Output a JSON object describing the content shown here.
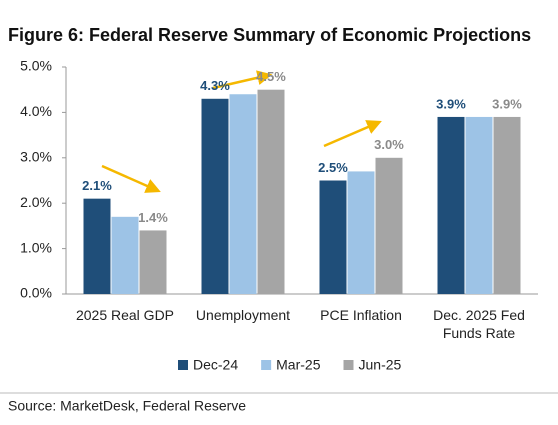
{
  "chart_data": {
    "type": "bar",
    "title": "Figure 6: Federal Reserve Summary of Economic Projections",
    "categories": [
      "2025 Real GDP",
      "Unemployment",
      "PCE Inflation",
      "Dec. 2025 Fed Funds Rate"
    ],
    "series": [
      {
        "name": "Dec-24",
        "color": "#1f4e79",
        "values": [
          2.1,
          4.3,
          2.5,
          3.9
        ],
        "value_labels": [
          "2.1%",
          "4.3%",
          "2.5%",
          "3.9%"
        ]
      },
      {
        "name": "Mar-25",
        "color": "#9dc3e6",
        "values": [
          1.7,
          4.4,
          2.7,
          3.9
        ]
      },
      {
        "name": "Jun-25",
        "color": "#a5a5a5",
        "values": [
          1.4,
          4.5,
          3.0,
          3.9
        ],
        "value_labels": [
          "1.4%",
          "4.5%",
          "3.0%",
          "3.9%"
        ]
      }
    ],
    "ylim": [
      0,
      5
    ],
    "yticks": [
      {
        "value": 0,
        "label": "0.0%"
      },
      {
        "value": 1,
        "label": "1.0%"
      },
      {
        "value": 2,
        "label": "2.0%"
      },
      {
        "value": 3,
        "label": "3.0%"
      },
      {
        "value": 4,
        "label": "4.0%"
      },
      {
        "value": 5,
        "label": "5.0%"
      }
    ],
    "legend": "bottom",
    "source": "Source: MarketDesk, Federal Reserve"
  }
}
